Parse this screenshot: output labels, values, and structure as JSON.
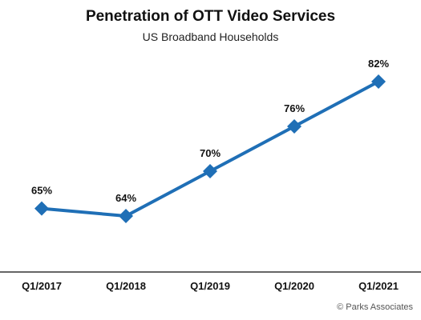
{
  "chart_data": {
    "type": "line",
    "title": "Penetration of OTT Video Services",
    "subtitle": "US Broadband Households",
    "categories": [
      "Q1/2017",
      "Q1/2018",
      "Q1/2019",
      "Q1/2020",
      "Q1/2021"
    ],
    "values": [
      65,
      64,
      70,
      76,
      82
    ],
    "data_labels": [
      "65%",
      "64%",
      "70%",
      "76%",
      "82%"
    ],
    "marker": "diamond",
    "series_color": "#1f6fb6",
    "y_axis_visible": false,
    "grid": false,
    "legend": "none"
  },
  "source_note": "© Parks Associates"
}
